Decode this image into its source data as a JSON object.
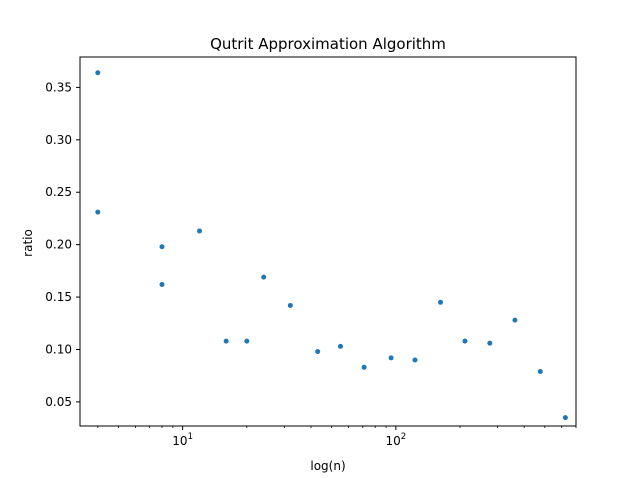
{
  "chart_data": {
    "type": "scatter",
    "title": "Qutrit Approximation Algorithm",
    "xlabel": "log(n)",
    "ylabel": "ratio",
    "xscale": "log",
    "xlim": [
      3.3,
      700
    ],
    "ylim": [
      0.027,
      0.379
    ],
    "grid": false,
    "marker_color": "#1f77b4",
    "x_ticks": [
      {
        "value": 10,
        "base": "10",
        "exp": "1"
      },
      {
        "value": 100,
        "base": "10",
        "exp": "2"
      }
    ],
    "y_ticks": [
      {
        "value": 0.05,
        "label": "0.05"
      },
      {
        "value": 0.1,
        "label": "0.10"
      },
      {
        "value": 0.15,
        "label": "0.15"
      },
      {
        "value": 0.2,
        "label": "0.20"
      },
      {
        "value": 0.25,
        "label": "0.25"
      },
      {
        "value": 0.3,
        "label": "0.30"
      },
      {
        "value": 0.35,
        "label": "0.35"
      }
    ],
    "points": [
      {
        "x": 4,
        "y": 0.364
      },
      {
        "x": 4,
        "y": 0.231
      },
      {
        "x": 8,
        "y": 0.198
      },
      {
        "x": 8,
        "y": 0.162
      },
      {
        "x": 12,
        "y": 0.213
      },
      {
        "x": 16,
        "y": 0.108
      },
      {
        "x": 20,
        "y": 0.108
      },
      {
        "x": 24,
        "y": 0.169
      },
      {
        "x": 32,
        "y": 0.142
      },
      {
        "x": 43,
        "y": 0.098
      },
      {
        "x": 55,
        "y": 0.103
      },
      {
        "x": 71,
        "y": 0.083
      },
      {
        "x": 95,
        "y": 0.092
      },
      {
        "x": 123,
        "y": 0.09
      },
      {
        "x": 162,
        "y": 0.145
      },
      {
        "x": 211,
        "y": 0.108
      },
      {
        "x": 276,
        "y": 0.106
      },
      {
        "x": 362,
        "y": 0.128
      },
      {
        "x": 476,
        "y": 0.079
      },
      {
        "x": 624,
        "y": 0.035
      }
    ]
  }
}
